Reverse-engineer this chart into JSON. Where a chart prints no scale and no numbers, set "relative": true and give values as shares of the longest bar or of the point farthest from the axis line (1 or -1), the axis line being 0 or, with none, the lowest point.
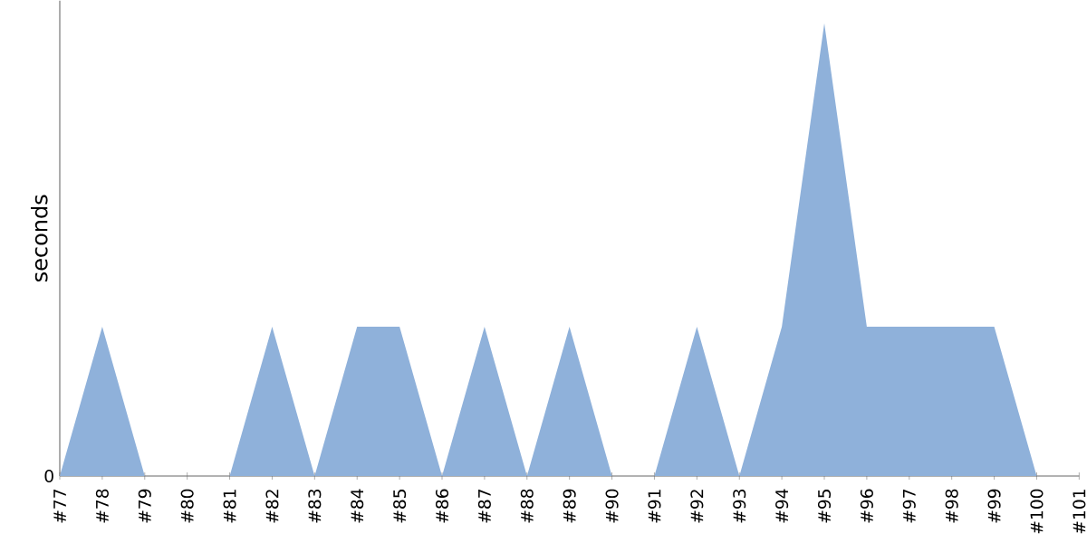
{
  "chart_data": {
    "type": "area",
    "ylabel": "seconds",
    "relative": true,
    "categories": [
      "#77",
      "#78",
      "#79",
      "#80",
      "#81",
      "#82",
      "#83",
      "#84",
      "#85",
      "#86",
      "#87",
      "#88",
      "#89",
      "#90",
      "#91",
      "#92",
      "#93",
      "#94",
      "#95",
      "#96",
      "#97",
      "#98",
      "#99",
      "#100",
      "#101"
    ],
    "series": [
      {
        "color": "#8fb1da",
        "values": [
          0,
          0.33,
          0,
          0,
          0,
          0.33,
          0,
          0.33,
          0.33,
          0,
          0.33,
          0,
          0.33,
          0,
          0,
          0.33,
          0,
          0.33,
          1,
          0.33,
          0.33,
          0.33,
          0.33,
          0,
          0
        ]
      }
    ],
    "annotations": [
      "0"
    ]
  }
}
